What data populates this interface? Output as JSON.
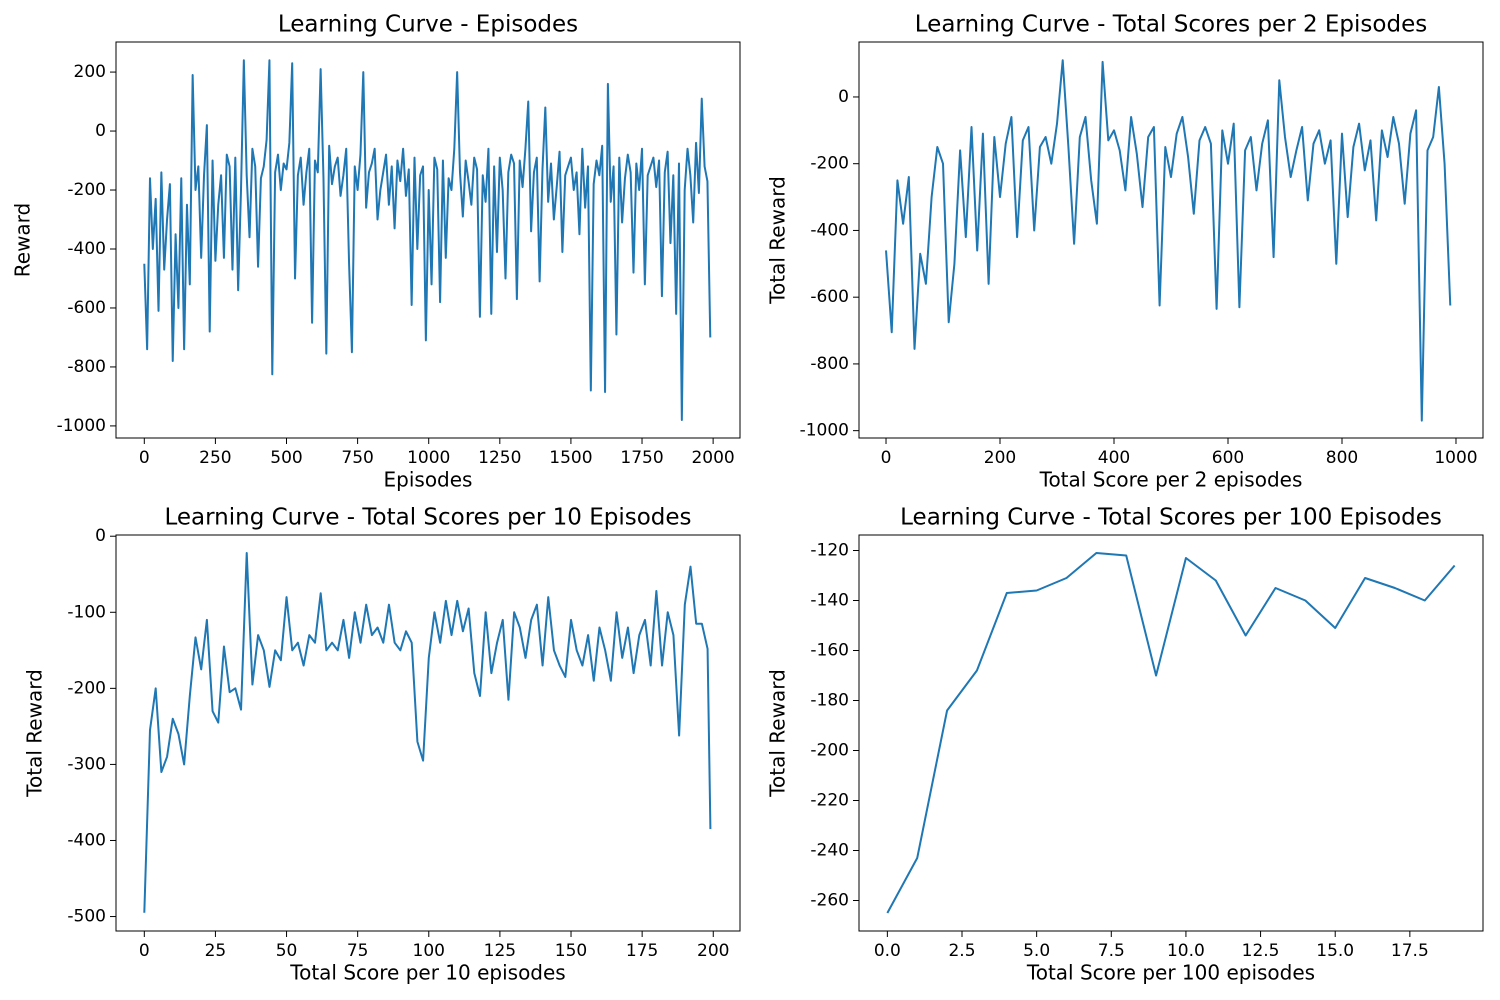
{
  "chart_data": [
    {
      "type": "line",
      "title": "Learning Curve - Episodes",
      "xlabel": "Episodes",
      "ylabel": "Reward",
      "color": "#1f77b4",
      "x": [
        0,
        10,
        20,
        30,
        40,
        50,
        60,
        70,
        80,
        90,
        100,
        110,
        120,
        130,
        140,
        150,
        160,
        170,
        180,
        190,
        200,
        210,
        220,
        230,
        240,
        250,
        260,
        270,
        280,
        290,
        300,
        310,
        320,
        330,
        340,
        350,
        360,
        370,
        380,
        390,
        400,
        410,
        420,
        430,
        440,
        450,
        460,
        470,
        480,
        490,
        500,
        510,
        520,
        530,
        540,
        550,
        560,
        570,
        580,
        590,
        600,
        610,
        620,
        630,
        640,
        650,
        660,
        670,
        680,
        690,
        700,
        710,
        720,
        730,
        740,
        750,
        760,
        770,
        780,
        790,
        800,
        810,
        820,
        830,
        840,
        850,
        860,
        870,
        880,
        890,
        900,
        910,
        920,
        930,
        940,
        950,
        960,
        970,
        980,
        990,
        1000,
        1010,
        1020,
        1030,
        1040,
        1050,
        1060,
        1070,
        1080,
        1090,
        1100,
        1110,
        1120,
        1130,
        1140,
        1150,
        1160,
        1170,
        1180,
        1190,
        1200,
        1210,
        1220,
        1230,
        1240,
        1250,
        1260,
        1270,
        1280,
        1290,
        1300,
        1310,
        1320,
        1330,
        1340,
        1350,
        1360,
        1370,
        1380,
        1390,
        1400,
        1410,
        1420,
        1430,
        1440,
        1450,
        1460,
        1470,
        1480,
        1490,
        1500,
        1510,
        1520,
        1530,
        1540,
        1550,
        1560,
        1570,
        1580,
        1590,
        1600,
        1610,
        1620,
        1630,
        1640,
        1650,
        1660,
        1670,
        1680,
        1690,
        1700,
        1710,
        1720,
        1730,
        1740,
        1750,
        1760,
        1770,
        1780,
        1790,
        1800,
        1810,
        1820,
        1830,
        1840,
        1850,
        1860,
        1870,
        1880,
        1890,
        1900,
        1910,
        1920,
        1930,
        1940,
        1950,
        1960,
        1970,
        1980,
        1990
      ],
      "values": [
        -450,
        -740,
        -160,
        -400,
        -230,
        -610,
        -140,
        -470,
        -300,
        -180,
        -780,
        -350,
        -600,
        -160,
        -740,
        -250,
        -520,
        190,
        -200,
        -120,
        -430,
        -150,
        20,
        -680,
        -100,
        -440,
        -250,
        -150,
        -430,
        -80,
        -120,
        -470,
        -90,
        -540,
        -200,
        240,
        -150,
        -360,
        -60,
        -120,
        -460,
        -160,
        -120,
        -30,
        240,
        -825,
        -140,
        -80,
        -200,
        -110,
        -130,
        -40,
        230,
        -500,
        -150,
        -90,
        -250,
        -140,
        -60,
        -650,
        -100,
        -140,
        210,
        -160,
        -755,
        -50,
        -180,
        -120,
        -90,
        -220,
        -150,
        -60,
        -450,
        -750,
        -120,
        -200,
        -80,
        200,
        -260,
        -140,
        -110,
        -60,
        -300,
        -200,
        -140,
        -80,
        -250,
        -120,
        -330,
        -100,
        -170,
        -60,
        -220,
        -130,
        -590,
        -90,
        -400,
        -150,
        -120,
        -710,
        -200,
        -520,
        -90,
        -130,
        -580,
        -100,
        -430,
        -160,
        -200,
        -60,
        200,
        -140,
        -290,
        -100,
        -170,
        -250,
        -90,
        -130,
        -630,
        -150,
        -240,
        -60,
        -620,
        -120,
        -410,
        -90,
        -200,
        -500,
        -140,
        -80,
        -110,
        -570,
        -100,
        -190,
        -60,
        100,
        -340,
        -140,
        -90,
        -510,
        -130,
        80,
        -240,
        -110,
        -300,
        -190,
        -70,
        -410,
        -150,
        -120,
        -90,
        -200,
        -140,
        -350,
        -60,
        -260,
        -120,
        -880,
        -180,
        -100,
        -150,
        -50,
        -885,
        160,
        -240,
        -120,
        -690,
        -90,
        -310,
        -160,
        -80,
        -140,
        -480,
        -110,
        -200,
        -60,
        -520,
        -150,
        -120,
        -90,
        -190,
        -100,
        -560,
        -140,
        -70,
        -380,
        -150,
        -620,
        -110,
        -980,
        -200,
        -60,
        -150,
        -310,
        -40,
        -210,
        110,
        -120,
        -170,
        -700
      ],
      "xlim": [
        -99.5,
        2094.5
      ],
      "ylim": [
        -1041,
        302
      ],
      "xticks": [
        0,
        250,
        500,
        750,
        1000,
        1250,
        1500,
        1750,
        2000
      ],
      "yticks": [
        -1000,
        -800,
        -600,
        -400,
        -200,
        0,
        200
      ]
    },
    {
      "type": "line",
      "title": "Learning Curve - Total Scores per 2 Episodes",
      "xlabel": "Total Score per 2 episodes",
      "ylabel": "Total Reward",
      "color": "#1f77b4",
      "x": [
        0,
        10,
        20,
        30,
        40,
        50,
        60,
        70,
        80,
        90,
        100,
        110,
        120,
        130,
        140,
        150,
        160,
        170,
        180,
        190,
        200,
        210,
        220,
        230,
        240,
        250,
        260,
        270,
        280,
        290,
        300,
        310,
        320,
        330,
        340,
        350,
        360,
        370,
        380,
        390,
        400,
        410,
        420,
        430,
        440,
        450,
        460,
        470,
        480,
        490,
        500,
        510,
        520,
        530,
        540,
        550,
        560,
        570,
        580,
        590,
        600,
        610,
        620,
        630,
        640,
        650,
        660,
        670,
        680,
        690,
        700,
        710,
        720,
        730,
        740,
        750,
        760,
        770,
        780,
        790,
        800,
        810,
        820,
        830,
        840,
        850,
        860,
        870,
        880,
        890,
        900,
        910,
        920,
        930,
        940,
        950,
        960,
        970,
        980,
        990
      ],
      "values": [
        -460,
        -705,
        -250,
        -380,
        -240,
        -755,
        -470,
        -560,
        -300,
        -150,
        -200,
        -675,
        -500,
        -160,
        -420,
        -90,
        -460,
        -110,
        -560,
        -120,
        -300,
        -140,
        -60,
        -420,
        -130,
        -90,
        -400,
        -150,
        -120,
        -200,
        -80,
        110,
        -150,
        -440,
        -120,
        -60,
        -250,
        -380,
        105,
        -130,
        -100,
        -160,
        -280,
        -60,
        -170,
        -330,
        -120,
        -90,
        -625,
        -150,
        -240,
        -110,
        -60,
        -180,
        -350,
        -130,
        -90,
        -140,
        -635,
        -100,
        -200,
        -80,
        -630,
        -160,
        -120,
        -280,
        -140,
        -70,
        -480,
        50,
        -120,
        -240,
        -160,
        -90,
        -310,
        -140,
        -100,
        -200,
        -130,
        -500,
        -110,
        -360,
        -150,
        -80,
        -220,
        -130,
        -370,
        -100,
        -180,
        -60,
        -140,
        -320,
        -110,
        -40,
        -970,
        -160,
        -120,
        30,
        -200,
        -625
      ],
      "xlim": [
        -47.4,
        1047.4
      ],
      "ylim": [
        -1022,
        164.7
      ],
      "xticks": [
        0,
        200,
        400,
        600,
        800,
        1000
      ],
      "yticks": [
        -1000,
        -800,
        -600,
        -400,
        -200,
        0
      ]
    },
    {
      "type": "line",
      "title": "Learning Curve - Total Scores per 10 Episodes",
      "xlabel": "Total Score per 10 episodes",
      "ylabel": "Total Reward",
      "color": "#1f77b4",
      "x": [
        0,
        2,
        4,
        6,
        8,
        10,
        12,
        14,
        16,
        18,
        20,
        22,
        24,
        26,
        28,
        30,
        32,
        34,
        36,
        38,
        40,
        42,
        44,
        46,
        48,
        50,
        52,
        54,
        56,
        58,
        60,
        62,
        64,
        66,
        68,
        70,
        72,
        74,
        76,
        78,
        80,
        82,
        84,
        86,
        88,
        90,
        92,
        94,
        96,
        98,
        100,
        102,
        104,
        106,
        108,
        110,
        112,
        114,
        116,
        118,
        120,
        122,
        124,
        126,
        128,
        130,
        132,
        134,
        136,
        138,
        140,
        142,
        144,
        146,
        148,
        150,
        152,
        154,
        156,
        158,
        160,
        162,
        164,
        166,
        168,
        170,
        172,
        174,
        176,
        178,
        180,
        182,
        184,
        186,
        188,
        190,
        192,
        194,
        196,
        198,
        199
      ],
      "values": [
        -495,
        -255,
        -200,
        -310,
        -290,
        -240,
        -260,
        -300,
        -210,
        -133,
        -175,
        -110,
        -230,
        -245,
        -145,
        -205,
        -200,
        -228,
        -22,
        -195,
        -130,
        -150,
        -198,
        -150,
        -163,
        -80,
        -150,
        -140,
        -170,
        -130,
        -140,
        -75,
        -150,
        -140,
        -150,
        -110,
        -160,
        -100,
        -140,
        -90,
        -130,
        -120,
        -140,
        -90,
        -140,
        -150,
        -125,
        -140,
        -270,
        -295,
        -160,
        -100,
        -140,
        -85,
        -130,
        -85,
        -125,
        -95,
        -180,
        -210,
        -100,
        -180,
        -140,
        -110,
        -215,
        -100,
        -120,
        -160,
        -110,
        -90,
        -170,
        -80,
        -150,
        -170,
        -185,
        -110,
        -150,
        -170,
        -130,
        -190,
        -120,
        -150,
        -190,
        -100,
        -160,
        -120,
        -180,
        -130,
        -110,
        -170,
        -72,
        -170,
        -100,
        -130,
        -262,
        -90,
        -40,
        -115,
        -115,
        -148,
        -385
      ],
      "xlim": [
        -9.95,
        209.4
      ],
      "ylim": [
        -519,
        1.6
      ],
      "xticks": [
        0,
        25,
        50,
        75,
        100,
        125,
        150,
        175,
        200
      ],
      "yticks": [
        -500,
        -400,
        -300,
        -200,
        -100,
        0
      ]
    },
    {
      "type": "line",
      "title": "Learning Curve - Total Scores per 100 Episodes",
      "xlabel": "Total Score per 100 episodes",
      "ylabel": "Total Reward",
      "color": "#1f77b4",
      "x": [
        0,
        1,
        2,
        3,
        4,
        5,
        6,
        7,
        8,
        9,
        10,
        11,
        12,
        13,
        14,
        15,
        16,
        17,
        18,
        19
      ],
      "values": [
        -265,
        -243,
        -184,
        -168,
        -137,
        -136,
        -131,
        -121,
        -122,
        -170,
        -123,
        -132,
        -154,
        -135,
        -140,
        -151,
        -131,
        -135,
        -140,
        -126
      ],
      "xlim": [
        -0.95,
        19.95
      ],
      "ylim": [
        -272.2,
        -113.8
      ],
      "xticks": [
        {
          "value": 0,
          "label": "0.0"
        },
        2.5,
        {
          "value": 5,
          "label": "5.0"
        },
        7.5,
        {
          "value": 10,
          "label": "10.0"
        },
        12.5,
        {
          "value": 15,
          "label": "15.0"
        },
        17.5
      ],
      "yticks": [
        -260,
        -240,
        -220,
        -200,
        -180,
        -160,
        -140,
        -120
      ]
    }
  ]
}
